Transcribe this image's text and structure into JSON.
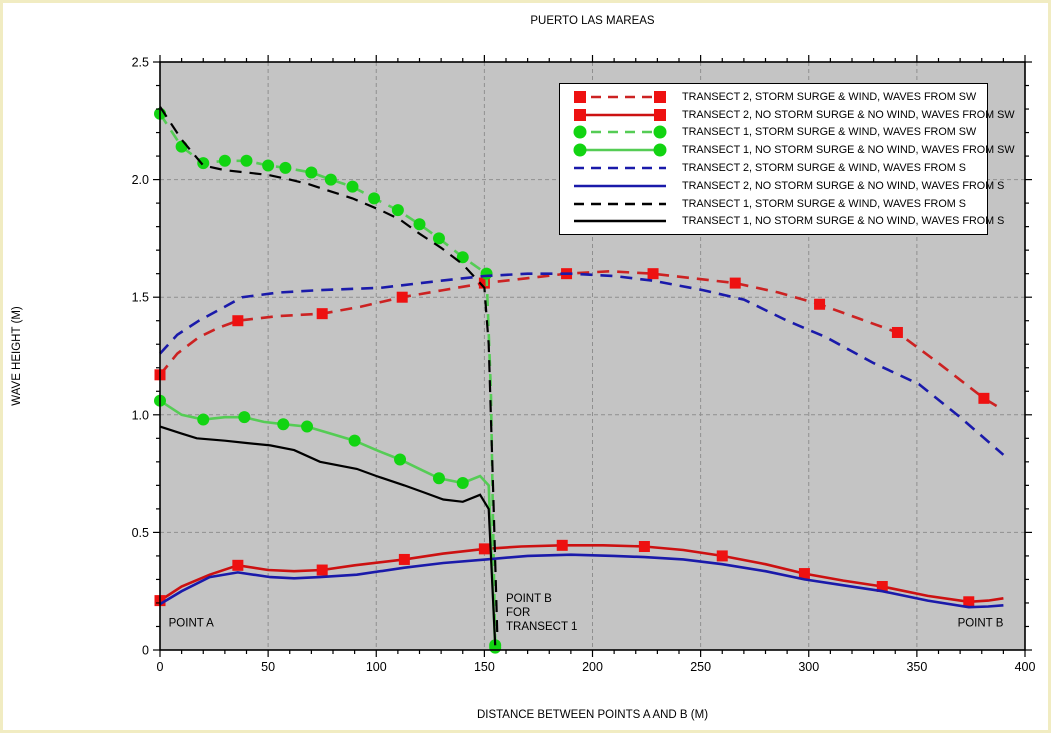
{
  "page": {
    "title": "PUERTO LAS MAREAS",
    "border_color": "#f1ecc2",
    "background": "#ffffff"
  },
  "chart_data": {
    "type": "line",
    "title": "PUERTO LAS MAREAS",
    "xlabel": "DISTANCE BETWEEN POINTS A AND B (M)",
    "ylabel": "WAVE HEIGHT (M)",
    "xlim": [
      0,
      400
    ],
    "ylim": [
      0,
      2.5
    ],
    "x_major_tick": 50,
    "x_minor_tick": 10,
    "y_major_tick": 0.5,
    "y_minor_tick": 0.1,
    "grid": "dashed-major",
    "plot_background": "#c4c4c4",
    "gridline_color": "#8f8f8f",
    "legend_position": "top-right-inside",
    "series": [
      {
        "label": "TRANSECT 2, STORM SURGE & WIND, WAVES FROM SW",
        "color": "#cc2222",
        "marker": "square",
        "marker_color": "#ee1111",
        "line": "dashed",
        "points": [
          [
            0,
            1.17
          ],
          [
            8,
            1.26
          ],
          [
            18,
            1.33
          ],
          [
            27,
            1.37
          ],
          [
            36,
            1.4
          ],
          [
            55,
            1.42
          ],
          [
            75,
            1.43
          ],
          [
            93,
            1.46
          ],
          [
            112,
            1.5
          ],
          [
            131,
            1.53
          ],
          [
            150,
            1.56
          ],
          [
            169,
            1.58
          ],
          [
            188,
            1.6
          ],
          [
            208,
            1.61
          ],
          [
            228,
            1.6
          ],
          [
            247,
            1.58
          ],
          [
            266,
            1.56
          ],
          [
            286,
            1.52
          ],
          [
            305,
            1.47
          ],
          [
            323,
            1.41
          ],
          [
            341,
            1.35
          ],
          [
            360,
            1.22
          ],
          [
            381,
            1.07
          ],
          [
            390,
            1.02
          ]
        ],
        "marker_points": [
          [
            0,
            1.17
          ],
          [
            36,
            1.4
          ],
          [
            75,
            1.43
          ],
          [
            112,
            1.5
          ],
          [
            150,
            1.56
          ],
          [
            188,
            1.6
          ],
          [
            228,
            1.6
          ],
          [
            266,
            1.56
          ],
          [
            305,
            1.47
          ],
          [
            341,
            1.35
          ],
          [
            381,
            1.07
          ]
        ]
      },
      {
        "label": "TRANSECT 2, NO STORM SURGE & NO WIND, WAVES FROM SW",
        "color": "#cc1111",
        "marker": "square",
        "marker_color": "#ee1111",
        "line": "solid",
        "points": [
          [
            0,
            0.21
          ],
          [
            10,
            0.27
          ],
          [
            23,
            0.32
          ],
          [
            36,
            0.36
          ],
          [
            50,
            0.34
          ],
          [
            62,
            0.335
          ],
          [
            75,
            0.34
          ],
          [
            90,
            0.36
          ],
          [
            113,
            0.385
          ],
          [
            131,
            0.41
          ],
          [
            150,
            0.43
          ],
          [
            167,
            0.44
          ],
          [
            186,
            0.445
          ],
          [
            205,
            0.445
          ],
          [
            224,
            0.44
          ],
          [
            242,
            0.425
          ],
          [
            260,
            0.4
          ],
          [
            280,
            0.365
          ],
          [
            298,
            0.325
          ],
          [
            316,
            0.295
          ],
          [
            334,
            0.27
          ],
          [
            355,
            0.23
          ],
          [
            374,
            0.205
          ],
          [
            383,
            0.21
          ],
          [
            390,
            0.22
          ]
        ],
        "marker_points": [
          [
            0,
            0.21
          ],
          [
            36,
            0.36
          ],
          [
            75,
            0.34
          ],
          [
            113,
            0.385
          ],
          [
            150,
            0.43
          ],
          [
            186,
            0.445
          ],
          [
            224,
            0.44
          ],
          [
            260,
            0.4
          ],
          [
            298,
            0.325
          ],
          [
            334,
            0.27
          ],
          [
            374,
            0.205
          ]
        ]
      },
      {
        "label": "TRANSECT 1, STORM SURGE & WIND, WAVES FROM SW",
        "color": "#55cc55",
        "marker": "circle",
        "marker_color": "#12d412",
        "line": "dashed",
        "points": [
          [
            0,
            2.28
          ],
          [
            10,
            2.14
          ],
          [
            20,
            2.07
          ],
          [
            30,
            2.08
          ],
          [
            40,
            2.08
          ],
          [
            50,
            2.06
          ],
          [
            58,
            2.05
          ],
          [
            70,
            2.03
          ],
          [
            79,
            2.0
          ],
          [
            89,
            1.97
          ],
          [
            99,
            1.92
          ],
          [
            110,
            1.87
          ],
          [
            120,
            1.81
          ],
          [
            129,
            1.75
          ],
          [
            140,
            1.67
          ],
          [
            151,
            1.6
          ],
          [
            153,
            1.1
          ],
          [
            154,
            0.55
          ],
          [
            155,
            0.02
          ]
        ],
        "marker_points": [
          [
            0,
            2.28
          ],
          [
            10,
            2.14
          ],
          [
            20,
            2.07
          ],
          [
            30,
            2.08
          ],
          [
            40,
            2.08
          ],
          [
            50,
            2.06
          ],
          [
            58,
            2.05
          ],
          [
            70,
            2.03
          ],
          [
            79,
            2.0
          ],
          [
            89,
            1.97
          ],
          [
            99,
            1.92
          ],
          [
            110,
            1.87
          ],
          [
            120,
            1.81
          ],
          [
            129,
            1.75
          ],
          [
            140,
            1.67
          ],
          [
            151,
            1.6
          ],
          [
            155,
            0.02
          ]
        ]
      },
      {
        "label": "TRANSECT 1, NO STORM SURGE & NO WIND, WAVES FROM SW",
        "color": "#55cc55",
        "marker": "circle",
        "marker_color": "#12d412",
        "line": "solid",
        "points": [
          [
            0,
            1.06
          ],
          [
            10,
            1.0
          ],
          [
            20,
            0.98
          ],
          [
            30,
            0.99
          ],
          [
            39,
            0.99
          ],
          [
            48,
            0.97
          ],
          [
            57,
            0.96
          ],
          [
            68,
            0.95
          ],
          [
            79,
            0.92
          ],
          [
            90,
            0.89
          ],
          [
            100,
            0.85
          ],
          [
            111,
            0.81
          ],
          [
            120,
            0.77
          ],
          [
            129,
            0.73
          ],
          [
            140,
            0.71
          ],
          [
            148,
            0.74
          ],
          [
            152,
            0.7
          ],
          [
            155,
            0.01
          ]
        ],
        "marker_points": [
          [
            0,
            1.06
          ],
          [
            20,
            0.98
          ],
          [
            39,
            0.99
          ],
          [
            57,
            0.96
          ],
          [
            68,
            0.95
          ],
          [
            90,
            0.89
          ],
          [
            111,
            0.81
          ],
          [
            129,
            0.73
          ],
          [
            140,
            0.71
          ],
          [
            155,
            0.01
          ]
        ]
      },
      {
        "label": "TRANSECT 2, STORM SURGE & WIND, WAVES FROM S",
        "color": "#1a1aaa",
        "marker": "none",
        "line": "dashed",
        "points": [
          [
            0,
            1.26
          ],
          [
            8,
            1.34
          ],
          [
            18,
            1.4
          ],
          [
            28,
            1.45
          ],
          [
            38,
            1.5
          ],
          [
            55,
            1.52
          ],
          [
            74,
            1.53
          ],
          [
            102,
            1.54
          ],
          [
            130,
            1.57
          ],
          [
            150,
            1.59
          ],
          [
            170,
            1.6
          ],
          [
            190,
            1.6
          ],
          [
            210,
            1.59
          ],
          [
            228,
            1.57
          ],
          [
            251,
            1.53
          ],
          [
            270,
            1.49
          ],
          [
            290,
            1.4
          ],
          [
            308,
            1.33
          ],
          [
            330,
            1.22
          ],
          [
            351,
            1.13
          ],
          [
            370,
            0.99
          ],
          [
            390,
            0.83
          ]
        ]
      },
      {
        "label": "TRANSECT 2, NO STORM SURGE & NO WIND, WAVES FROM S",
        "color": "#1a1aaa",
        "marker": "none",
        "line": "solid",
        "points": [
          [
            0,
            0.195
          ],
          [
            10,
            0.25
          ],
          [
            23,
            0.31
          ],
          [
            36,
            0.33
          ],
          [
            51,
            0.31
          ],
          [
            62,
            0.305
          ],
          [
            74,
            0.31
          ],
          [
            91,
            0.32
          ],
          [
            113,
            0.35
          ],
          [
            131,
            0.37
          ],
          [
            151,
            0.385
          ],
          [
            170,
            0.4
          ],
          [
            190,
            0.405
          ],
          [
            210,
            0.4
          ],
          [
            224,
            0.395
          ],
          [
            242,
            0.385
          ],
          [
            260,
            0.365
          ],
          [
            280,
            0.335
          ],
          [
            298,
            0.3
          ],
          [
            316,
            0.275
          ],
          [
            334,
            0.25
          ],
          [
            355,
            0.21
          ],
          [
            374,
            0.182
          ],
          [
            383,
            0.185
          ],
          [
            390,
            0.19
          ]
        ]
      },
      {
        "label": "TRANSECT 1, STORM SURGE & WIND, WAVES FROM S",
        "color": "#000000",
        "marker": "none",
        "line": "dashed",
        "points": [
          [
            0,
            2.31
          ],
          [
            10,
            2.17
          ],
          [
            20,
            2.06
          ],
          [
            30,
            2.04
          ],
          [
            40,
            2.03
          ],
          [
            50,
            2.02
          ],
          [
            60,
            2.0
          ],
          [
            69,
            1.98
          ],
          [
            79,
            1.95
          ],
          [
            89,
            1.92
          ],
          [
            102,
            1.87
          ],
          [
            111,
            1.83
          ],
          [
            120,
            1.77
          ],
          [
            130,
            1.71
          ],
          [
            140,
            1.64
          ],
          [
            150,
            1.54
          ],
          [
            152,
            1.3
          ],
          [
            154,
            0.7
          ],
          [
            156,
            0.05
          ]
        ]
      },
      {
        "label": "TRANSECT 1, NO STORM SURGE & NO WIND, WAVES FROM S",
        "color": "#000000",
        "marker": "none",
        "line": "solid",
        "points": [
          [
            0,
            0.95
          ],
          [
            10,
            0.92
          ],
          [
            17,
            0.9
          ],
          [
            30,
            0.89
          ],
          [
            40,
            0.88
          ],
          [
            51,
            0.87
          ],
          [
            62,
            0.85
          ],
          [
            74,
            0.8
          ],
          [
            91,
            0.77
          ],
          [
            100,
            0.74
          ],
          [
            113,
            0.7
          ],
          [
            122,
            0.67
          ],
          [
            131,
            0.64
          ],
          [
            140,
            0.63
          ],
          [
            148,
            0.66
          ],
          [
            152,
            0.6
          ],
          [
            155,
            0.02
          ]
        ]
      }
    ],
    "annotations": [
      {
        "text": "POINT A",
        "x": 4,
        "y": 0.1,
        "anchor": "start"
      },
      {
        "text": "POINT B",
        "x": 390,
        "y": 0.1,
        "anchor": "end"
      },
      {
        "text": "POINT B",
        "x": 160,
        "y": 0.205,
        "anchor": "start"
      },
      {
        "text": "FOR",
        "x": 160,
        "y": 0.145,
        "anchor": "start"
      },
      {
        "text": "TRANSECT 1",
        "x": 160,
        "y": 0.085,
        "anchor": "start"
      }
    ]
  }
}
